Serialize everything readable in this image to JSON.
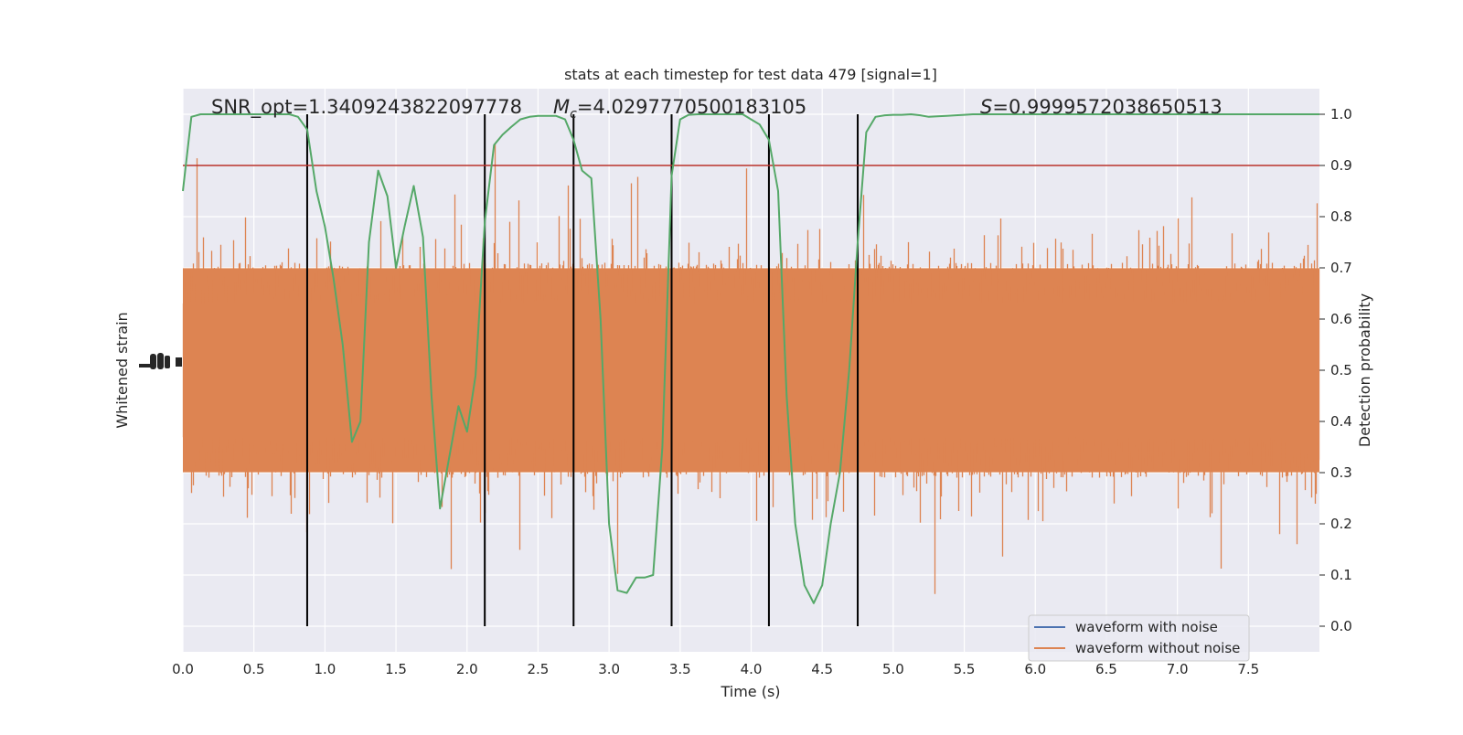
{
  "chart_data": {
    "type": "line",
    "title": "stats at each timestep for test data 479 [signal=1]",
    "annotations": {
      "snr": "SNR_opt=1.3409243822097778",
      "mc_symbol": "M",
      "mc_subscript": "c",
      "mc_value": "=4.0297770500183105",
      "s_symbol": "S",
      "s_value": "=0.9999572038650513"
    },
    "xlabel": "Time (s)",
    "ylabel_left": "Whitened strain",
    "ylabel_right": "Detection probability",
    "xlim": [
      0,
      8.0
    ],
    "ylim_right": [
      -0.05,
      1.05
    ],
    "xticks": [
      "0.0",
      "0.5",
      "1.0",
      "1.5",
      "2.0",
      "2.5",
      "3.0",
      "3.5",
      "4.0",
      "4.5",
      "5.0",
      "5.5",
      "6.0",
      "6.5",
      "7.0",
      "7.5"
    ],
    "yticks_right": [
      "0.0",
      "0.1",
      "0.2",
      "0.3",
      "0.4",
      "0.5",
      "0.6",
      "0.7",
      "0.8",
      "0.9",
      "1.0"
    ],
    "legend": {
      "position": "lower-right",
      "entries": [
        {
          "label": "waveform with noise",
          "color": "#4c72b0"
        },
        {
          "label": "waveform without noise",
          "color": "#dd8452"
        }
      ]
    },
    "threshold": {
      "value": 0.9,
      "color": "#b8302a"
    },
    "vertical_lines": [
      0.875,
      2.125,
      2.75,
      3.44,
      4.125,
      4.75
    ],
    "strain_band": {
      "center_prob": 0.5,
      "p10": 0.29,
      "p90": 0.71,
      "peak_min": 0.0,
      "peak_max": 1.0,
      "color": "#dd8452"
    },
    "probability_series": {
      "color": "#55a868",
      "t": [
        0.0,
        0.06,
        0.125,
        0.19,
        0.25,
        0.31,
        0.375,
        0.44,
        0.5,
        0.56,
        0.625,
        0.69,
        0.75,
        0.81,
        0.875,
        0.94,
        1.0,
        1.06,
        1.125,
        1.19,
        1.25,
        1.31,
        1.375,
        1.44,
        1.5,
        1.56,
        1.625,
        1.69,
        1.75,
        1.81,
        1.875,
        1.94,
        2.0,
        2.06,
        2.125,
        2.19,
        2.25,
        2.31,
        2.375,
        2.44,
        2.5,
        2.56,
        2.625,
        2.69,
        2.75,
        2.81,
        2.875,
        2.94,
        3.0,
        3.06,
        3.125,
        3.19,
        3.25,
        3.31,
        3.375,
        3.44,
        3.5,
        3.56,
        3.625,
        3.69,
        3.75,
        3.81,
        3.875,
        3.94,
        4.0,
        4.06,
        4.125,
        4.19,
        4.25,
        4.31,
        4.375,
        4.44,
        4.5,
        4.56,
        4.625,
        4.69,
        4.75,
        4.81,
        4.875,
        4.94,
        5.0,
        5.06,
        5.125,
        5.19,
        5.25,
        5.31,
        5.375,
        5.44,
        5.5,
        5.56,
        5.625,
        5.69,
        5.75,
        5.81,
        5.875,
        5.94,
        6.0,
        6.5,
        7.0,
        7.5,
        8.0
      ],
      "values": [
        0.85,
        0.995,
        1.0,
        1.0,
        1.0,
        1.0,
        1.0,
        1.0,
        1.0,
        1.0,
        1.0,
        1.0,
        1.0,
        0.995,
        0.97,
        0.85,
        0.78,
        0.68,
        0.55,
        0.36,
        0.4,
        0.75,
        0.89,
        0.84,
        0.7,
        0.78,
        0.86,
        0.76,
        0.45,
        0.23,
        0.33,
        0.43,
        0.38,
        0.49,
        0.79,
        0.94,
        0.96,
        0.975,
        0.99,
        0.995,
        0.997,
        0.997,
        0.997,
        0.99,
        0.95,
        0.89,
        0.875,
        0.6,
        0.2,
        0.07,
        0.065,
        0.095,
        0.095,
        0.1,
        0.35,
        0.88,
        0.99,
        0.999,
        1.0,
        1.0,
        1.0,
        1.0,
        1.0,
        1.0,
        0.99,
        0.98,
        0.95,
        0.85,
        0.45,
        0.2,
        0.08,
        0.045,
        0.08,
        0.2,
        0.3,
        0.5,
        0.75,
        0.965,
        0.995,
        0.998,
        0.999,
        0.999,
        1.0,
        0.998,
        0.995,
        0.996,
        0.997,
        0.998,
        0.999,
        1.0,
        1.0,
        1.0,
        1.0,
        1.0,
        1.0,
        1.0,
        1.0,
        1.0,
        1.0,
        1.0,
        1.0
      ]
    }
  }
}
